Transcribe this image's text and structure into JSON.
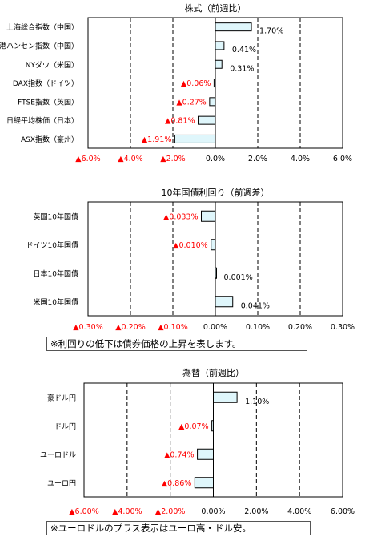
{
  "colors": {
    "bar_fill": "#dff6fb",
    "bar_stroke": "#000000",
    "negative_text": "#ff0000",
    "positive_text": "#000000"
  },
  "chart_data": [
    {
      "type": "bar",
      "orientation": "horizontal",
      "title": "株式（前週比）",
      "categories": [
        "上海総合指数（中国）",
        "香港ハンセン指数（中国）",
        "NYダウ（米国）",
        "DAX指数（ドイツ）",
        "FTSE指数（英国）",
        "日経平均株価（日本）",
        "ASX指数（豪州）"
      ],
      "values": [
        1.7,
        0.41,
        0.31,
        -0.06,
        -0.27,
        -0.81,
        -1.91
      ],
      "value_labels": [
        "1.70%",
        "0.41%",
        "0.31%",
        "▲0.06%",
        "▲0.27%",
        "▲0.81%",
        "▲1.91%"
      ],
      "xlim": [
        -6,
        6
      ],
      "ticks": [
        -6,
        -4,
        -2,
        0,
        2,
        4,
        6
      ],
      "tick_labels": [
        "▲6.0%",
        "▲4.0%",
        "▲2.0%",
        "0.0%",
        "2.0%",
        "4.0%",
        "6.0%"
      ],
      "grid": "dashed vertical"
    },
    {
      "type": "bar",
      "orientation": "horizontal",
      "title": "10年国債利回り（前週差）",
      "categories": [
        "英国10年国債",
        "ドイツ10年国債",
        "日本10年国債",
        "米国10年国債"
      ],
      "values": [
        -0.033,
        -0.01,
        0.001,
        0.041
      ],
      "value_labels": [
        "▲0.033%",
        "▲0.010%",
        "0.001%",
        "0.041%"
      ],
      "xlim": [
        -0.3,
        0.3
      ],
      "ticks": [
        -0.3,
        -0.2,
        -0.1,
        0,
        0.1,
        0.2,
        0.3
      ],
      "tick_labels": [
        "▲0.30%",
        "▲0.20%",
        "▲0.10%",
        "0.00%",
        "0.10%",
        "0.20%",
        "0.30%"
      ],
      "grid": "dashed vertical",
      "note": "※利回りの低下は債券価格の上昇を表します。"
    },
    {
      "type": "bar",
      "orientation": "horizontal",
      "title": "為替（前週比）",
      "categories": [
        "豪ドル円",
        "ドル円",
        "ユーロドル",
        "ユーロ円"
      ],
      "values": [
        1.1,
        -0.07,
        -0.74,
        -0.86
      ],
      "value_labels": [
        "1.10%",
        "▲0.07%",
        "▲0.74%",
        "▲0.86%"
      ],
      "xlim": [
        -6,
        6
      ],
      "ticks": [
        -6,
        -4,
        -2,
        0,
        2,
        4,
        6
      ],
      "tick_labels": [
        "▲6.00%",
        "▲4.00%",
        "▲2.00%",
        "0.00%",
        "2.00%",
        "4.00%",
        "6.00%"
      ],
      "grid": "dashed vertical",
      "note": "※ユーロドルのプラス表示はユーロ高・ドル安。"
    }
  ]
}
